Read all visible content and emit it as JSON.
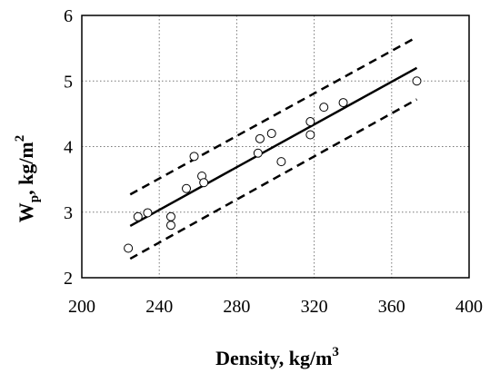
{
  "chart_data": {
    "type": "scatter",
    "xlabel": {
      "main": "Density, kg/m",
      "sup": "3"
    },
    "ylabel": {
      "main": "W",
      "sub": "p",
      "rest": ", kg/m",
      "sup": "2"
    },
    "xlim": [
      200,
      400
    ],
    "ylim": [
      2,
      6
    ],
    "x_ticks": [
      "200",
      "240",
      "280",
      "320",
      "360",
      "400"
    ],
    "y_ticks": [
      "2",
      "3",
      "4",
      "5",
      "6"
    ],
    "grid": true,
    "grid_style": "dotted",
    "series": [
      {
        "type": "scatter",
        "marker": "open-circle",
        "points": [
          {
            "x": 224,
            "y": 2.45
          },
          {
            "x": 229,
            "y": 2.93
          },
          {
            "x": 234,
            "y": 2.99
          },
          {
            "x": 246,
            "y": 2.93
          },
          {
            "x": 246,
            "y": 2.8
          },
          {
            "x": 254,
            "y": 3.36
          },
          {
            "x": 258,
            "y": 3.85
          },
          {
            "x": 262,
            "y": 3.55
          },
          {
            "x": 263,
            "y": 3.45
          },
          {
            "x": 291,
            "y": 3.9
          },
          {
            "x": 292,
            "y": 4.12
          },
          {
            "x": 298,
            "y": 4.2
          },
          {
            "x": 303,
            "y": 3.77
          },
          {
            "x": 318,
            "y": 4.38
          },
          {
            "x": 318,
            "y": 4.18
          },
          {
            "x": 325,
            "y": 4.6
          },
          {
            "x": 335,
            "y": 4.67
          },
          {
            "x": 373,
            "y": 5.0
          }
        ]
      },
      {
        "type": "line",
        "style": "solid",
        "points": [
          {
            "x": 225,
            "y": 2.79
          },
          {
            "x": 373,
            "y": 5.2
          }
        ]
      },
      {
        "type": "line",
        "style": "dashed",
        "points": [
          {
            "x": 225,
            "y": 3.27
          },
          {
            "x": 373,
            "y": 5.67
          }
        ]
      },
      {
        "type": "line",
        "style": "dashed",
        "points": [
          {
            "x": 225,
            "y": 2.29
          },
          {
            "x": 373,
            "y": 4.72
          }
        ]
      }
    ]
  }
}
